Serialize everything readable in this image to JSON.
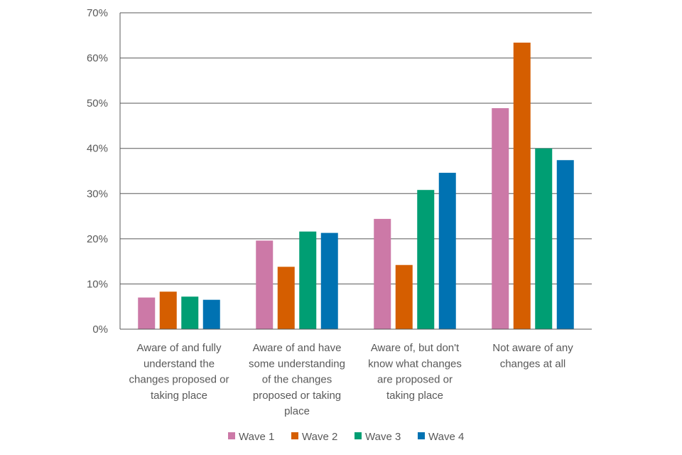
{
  "chart_data": {
    "type": "bar",
    "categories": [
      [
        "Aware of and fully",
        "understand the",
        "changes proposed or",
        "taking place"
      ],
      [
        "Aware of and have",
        "some understanding",
        "of the changes",
        "proposed or taking",
        "place"
      ],
      [
        "Aware of, but don't",
        "know what changes",
        "are proposed or",
        "taking place"
      ],
      [
        "Not aware of any",
        "changes at all"
      ]
    ],
    "series": [
      {
        "name": "Wave 1",
        "color": "#cc79a7",
        "values": [
          7,
          19.6,
          24.4,
          48.9
        ]
      },
      {
        "name": "Wave 2",
        "color": "#d55e00",
        "values": [
          8.3,
          13.8,
          14.2,
          63.4
        ]
      },
      {
        "name": "Wave 3",
        "color": "#009e73",
        "values": [
          7.2,
          21.6,
          30.8,
          40
        ]
      },
      {
        "name": "Wave 4",
        "color": "#0072b2",
        "values": [
          6.5,
          21.3,
          34.6,
          37.4
        ]
      }
    ],
    "yticks": [
      "0%",
      "10%",
      "20%",
      "30%",
      "40%",
      "50%",
      "60%",
      "70%"
    ],
    "ylim": [
      0,
      70
    ],
    "grid": true,
    "legend_position": "bottom",
    "title": "",
    "xlabel": "",
    "ylabel": ""
  }
}
